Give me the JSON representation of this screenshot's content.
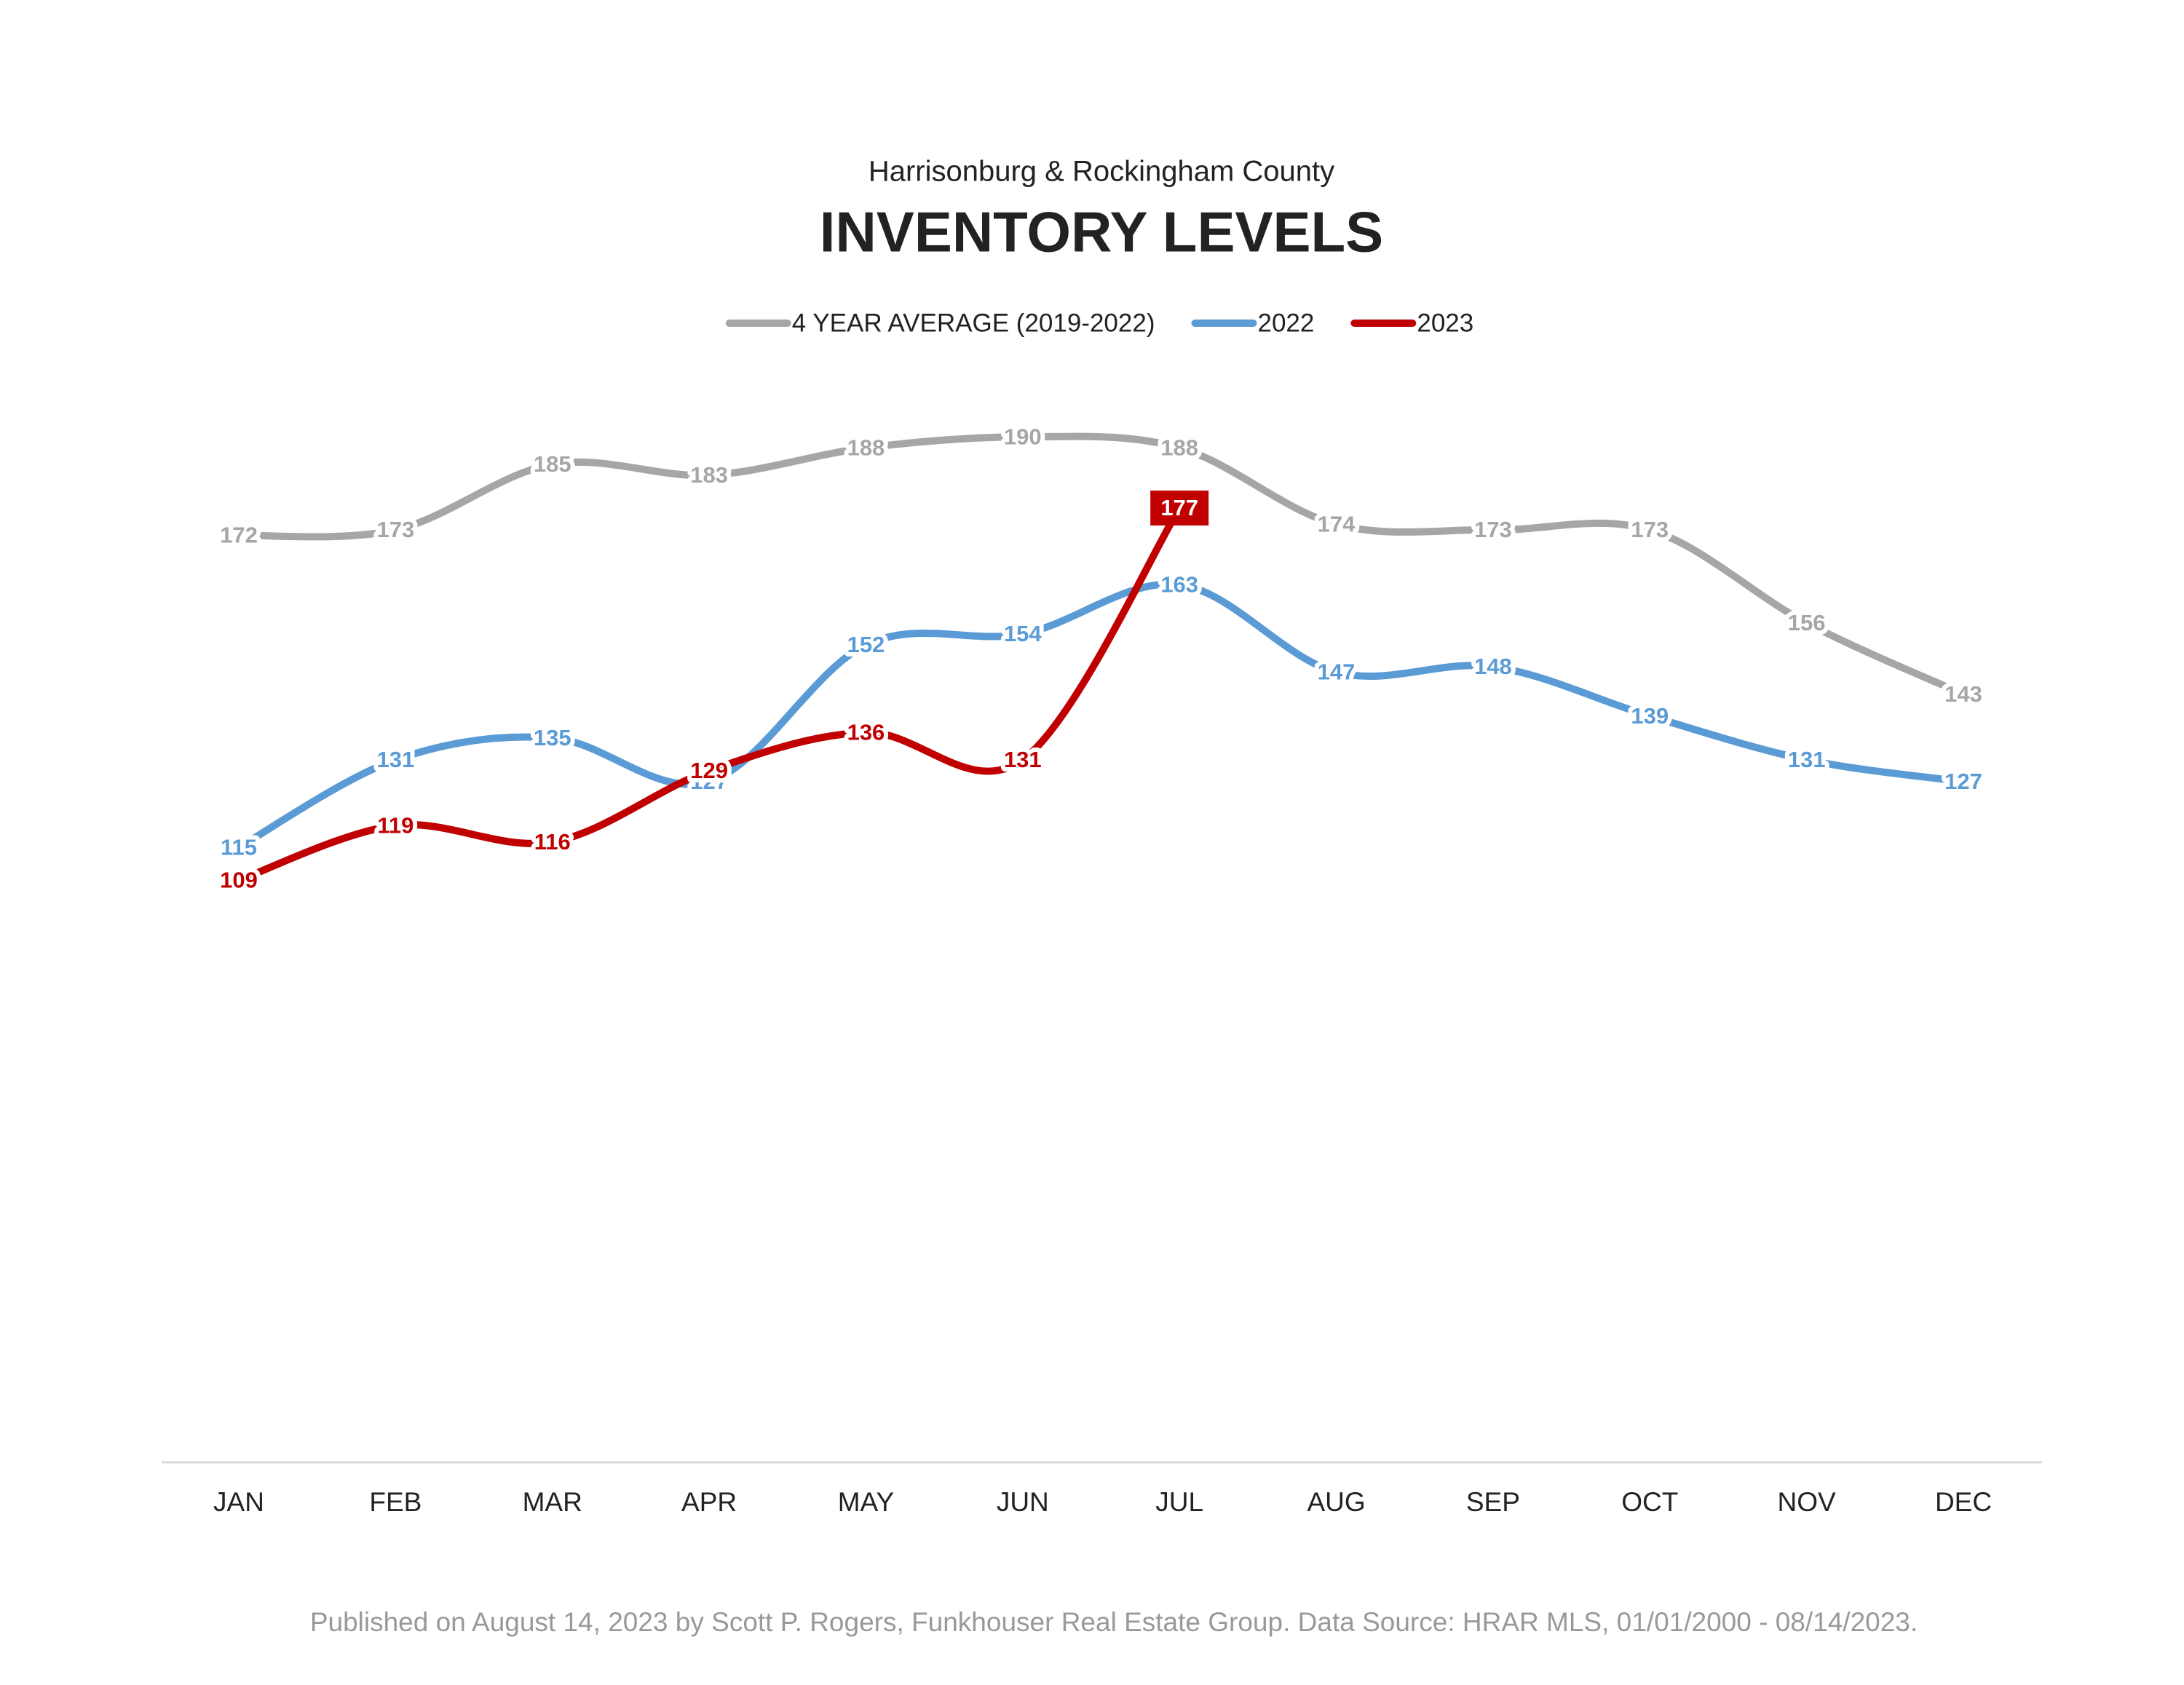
{
  "chart_data": {
    "type": "line",
    "subtitle": "Harrisonburg & Rockingham County",
    "title": "INVENTORY LEVELS",
    "footer": "Published on August 14, 2023 by Scott P. Rogers, Funkhouser Real Estate Group. Data Source: HRAR MLS, 01/01/2000 - 08/14/2023.",
    "categories": [
      "JAN",
      "FEB",
      "MAR",
      "APR",
      "MAY",
      "JUN",
      "JUL",
      "AUG",
      "SEP",
      "OCT",
      "NOV",
      "DEC"
    ],
    "ylim": [
      0,
      200
    ],
    "smooth": true,
    "series": [
      {
        "name": "4 YEAR AVERAGE (2019-2022)",
        "color": "#a6a6a6",
        "values": [
          172,
          173,
          185,
          183,
          188,
          190,
          188,
          174,
          173,
          173,
          156,
          143
        ]
      },
      {
        "name": "2022",
        "color": "#5b9bd5",
        "values": [
          115,
          131,
          135,
          127,
          152,
          154,
          163,
          147,
          148,
          139,
          131,
          127
        ]
      },
      {
        "name": "2023",
        "color": "#c00000",
        "values": [
          109,
          119,
          116,
          129,
          136,
          131,
          177,
          null,
          null,
          null,
          null,
          null
        ],
        "label_box": true
      }
    ]
  }
}
